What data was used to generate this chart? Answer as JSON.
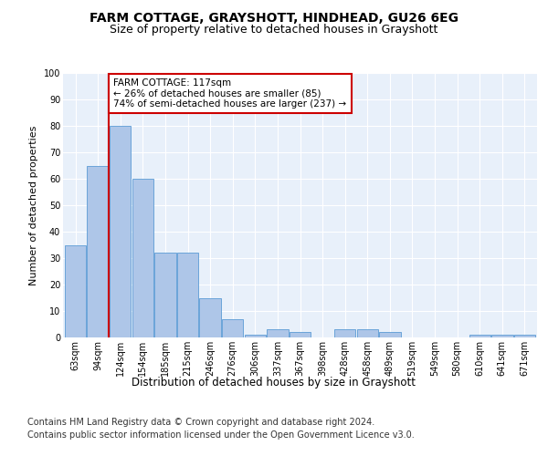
{
  "title": "FARM COTTAGE, GRAYSHOTT, HINDHEAD, GU26 6EG",
  "subtitle": "Size of property relative to detached houses in Grayshott",
  "xlabel": "Distribution of detached houses by size in Grayshott",
  "ylabel": "Number of detached properties",
  "categories": [
    "63sqm",
    "94sqm",
    "124sqm",
    "154sqm",
    "185sqm",
    "215sqm",
    "246sqm",
    "276sqm",
    "306sqm",
    "337sqm",
    "367sqm",
    "398sqm",
    "428sqm",
    "458sqm",
    "489sqm",
    "519sqm",
    "549sqm",
    "580sqm",
    "610sqm",
    "641sqm",
    "671sqm"
  ],
  "values": [
    35,
    65,
    80,
    60,
    32,
    32,
    15,
    7,
    1,
    3,
    2,
    0,
    3,
    3,
    2,
    0,
    0,
    0,
    1,
    1,
    1
  ],
  "bar_color": "#aec6e8",
  "bar_edge_color": "#5b9bd5",
  "vline_x_idx": 1.5,
  "vline_color": "#cc0000",
  "annotation_text": "FARM COTTAGE: 117sqm\n← 26% of detached houses are smaller (85)\n74% of semi-detached houses are larger (237) →",
  "annotation_box_color": "#cc0000",
  "ylim": [
    0,
    100
  ],
  "yticks": [
    0,
    10,
    20,
    30,
    40,
    50,
    60,
    70,
    80,
    90,
    100
  ],
  "footer1": "Contains HM Land Registry data © Crown copyright and database right 2024.",
  "footer2": "Contains public sector information licensed under the Open Government Licence v3.0.",
  "bg_color": "#e8f0fa",
  "fig_bg_color": "#ffffff",
  "title_fontsize": 10,
  "subtitle_fontsize": 9,
  "axis_label_fontsize": 8.5,
  "tick_fontsize": 7,
  "footer_fontsize": 7,
  "ylabel_fontsize": 8
}
